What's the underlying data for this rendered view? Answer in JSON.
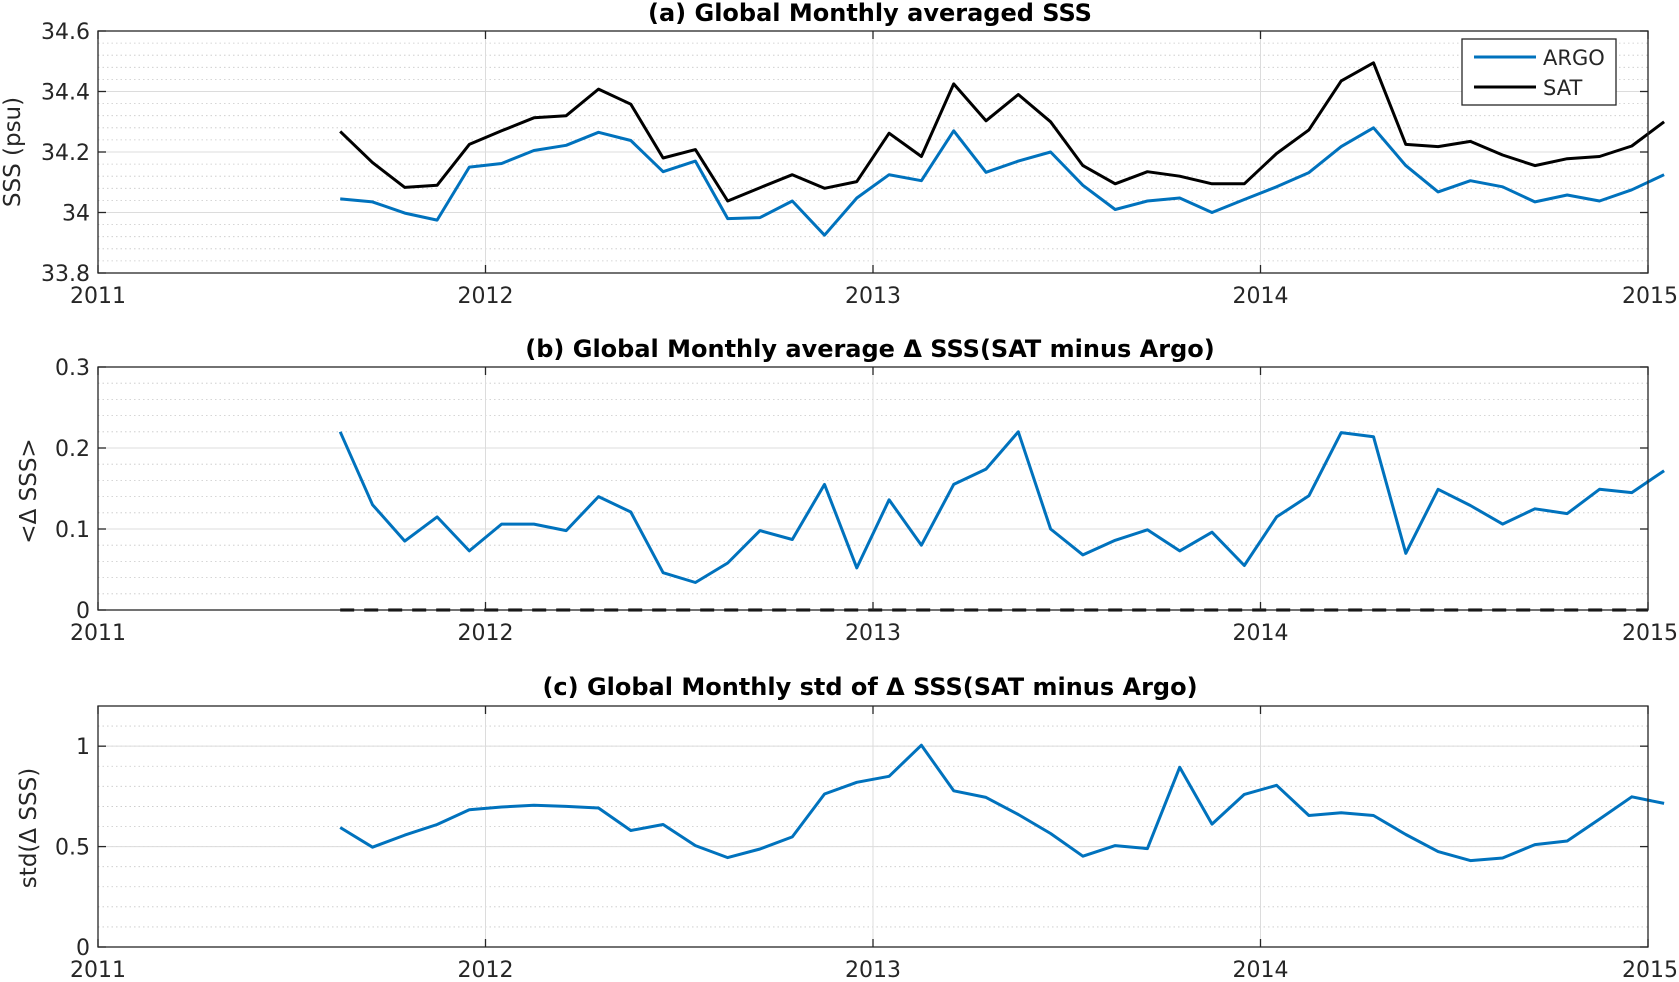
{
  "chart_data": [
    {
      "id": "a",
      "type": "line",
      "title": "(a) Global Monthly averaged SSS",
      "ylabel": "SSS (psu)",
      "xlim": [
        2011,
        2015
      ],
      "ylim": [
        33.8,
        34.6
      ],
      "xticks": [
        2011,
        2012,
        2013,
        2014,
        2015
      ],
      "xtick_labels": [
        "2011",
        "2012",
        "2013",
        "2014",
        "2015"
      ],
      "yticks": [
        33.8,
        34.0,
        34.2,
        34.4,
        34.6
      ],
      "ytick_labels": [
        "33.8",
        "34",
        "34.2",
        "34.4",
        "34.6"
      ],
      "grid": true,
      "minor_grid": true,
      "legend": {
        "placement": "top-right",
        "entries": [
          "ARGO",
          "SAT"
        ]
      },
      "x_start": 2011.625,
      "x_step": 0.08333,
      "series": [
        {
          "name": "ARGO",
          "color": "#0072BD",
          "values": [
            34.045,
            34.035,
            33.998,
            33.975,
            34.15,
            34.162,
            34.205,
            34.222,
            34.265,
            34.238,
            34.135,
            34.17,
            33.98,
            33.983,
            34.038,
            33.925,
            34.048,
            34.125,
            34.105,
            34.27,
            34.133,
            34.17,
            34.2,
            34.09,
            34.01,
            34.038,
            34.048,
            34.0,
            34.043,
            34.085,
            34.132,
            34.218,
            34.28,
            34.155,
            34.068,
            34.105,
            34.085,
            34.035,
            34.058,
            34.038,
            34.075,
            34.125
          ]
        },
        {
          "name": "SAT",
          "color": "#000000",
          "values": [
            34.268,
            34.165,
            34.083,
            34.09,
            34.225,
            34.27,
            34.313,
            34.32,
            34.408,
            34.358,
            34.18,
            34.208,
            34.038,
            34.082,
            34.125,
            34.08,
            34.102,
            34.262,
            34.185,
            34.425,
            34.303,
            34.39,
            34.3,
            34.155,
            34.095,
            34.135,
            34.12,
            34.095,
            34.095,
            34.195,
            34.273,
            34.435,
            34.495,
            34.225,
            34.218,
            34.235,
            34.19,
            34.155,
            34.178,
            34.185,
            34.22,
            34.3
          ]
        }
      ]
    },
    {
      "id": "b",
      "type": "line",
      "title": "(b) Global Monthly average Δ SSS(SAT minus Argo)",
      "ylabel": "<Δ SSS>",
      "xlim": [
        2011,
        2015
      ],
      "ylim": [
        0,
        0.3
      ],
      "xticks": [
        2011,
        2012,
        2013,
        2014,
        2015
      ],
      "xtick_labels": [
        "2011",
        "2012",
        "2013",
        "2014",
        "2015"
      ],
      "yticks": [
        0,
        0.1,
        0.2,
        0.3
      ],
      "ytick_labels": [
        "0",
        "0.1",
        "0.2",
        "0.3"
      ],
      "grid": true,
      "minor_grid": true,
      "zero_line": {
        "style": "dashed",
        "color": "#000000",
        "value": 0
      },
      "x_start": 2011.625,
      "x_step": 0.08333,
      "series": [
        {
          "color": "#0072BD",
          "values": [
            0.22,
            0.13,
            0.085,
            0.115,
            0.073,
            0.106,
            0.106,
            0.098,
            0.14,
            0.121,
            0.046,
            0.034,
            0.058,
            0.098,
            0.087,
            0.155,
            0.052,
            0.136,
            0.08,
            0.155,
            0.174,
            0.22,
            0.1,
            0.068,
            0.086,
            0.099,
            0.073,
            0.096,
            0.055,
            0.115,
            0.141,
            0.219,
            0.214,
            0.07,
            0.149,
            0.129,
            0.106,
            0.125,
            0.119,
            0.149,
            0.145,
            0.172
          ]
        }
      ]
    },
    {
      "id": "c",
      "type": "line",
      "title": "(c) Global Monthly std of Δ SSS(SAT minus Argo)",
      "ylabel": "std(Δ SSS)",
      "xlim": [
        2011,
        2015
      ],
      "ylim": [
        0,
        1.2
      ],
      "xticks": [
        2011,
        2012,
        2013,
        2014,
        2015
      ],
      "xtick_labels": [
        "2011",
        "2012",
        "2013",
        "2014",
        "2015"
      ],
      "yticks": [
        0,
        0.5,
        1.0
      ],
      "ytick_labels": [
        "0",
        "0.5",
        "1"
      ],
      "grid": true,
      "minor_grid": true,
      "x_start": 2011.625,
      "x_step": 0.08333,
      "series": [
        {
          "color": "#0072BD",
          "values": [
            0.595,
            0.497,
            0.557,
            0.61,
            0.683,
            0.697,
            0.706,
            0.7,
            0.692,
            0.58,
            0.61,
            0.505,
            0.445,
            0.488,
            0.548,
            0.762,
            0.82,
            0.85,
            1.005,
            0.778,
            0.745,
            0.66,
            0.565,
            0.452,
            0.505,
            0.49,
            0.895,
            0.612,
            0.76,
            0.805,
            0.655,
            0.668,
            0.655,
            0.56,
            0.475,
            0.43,
            0.443,
            0.51,
            0.528,
            0.637,
            0.748,
            0.715
          ]
        }
      ]
    }
  ]
}
